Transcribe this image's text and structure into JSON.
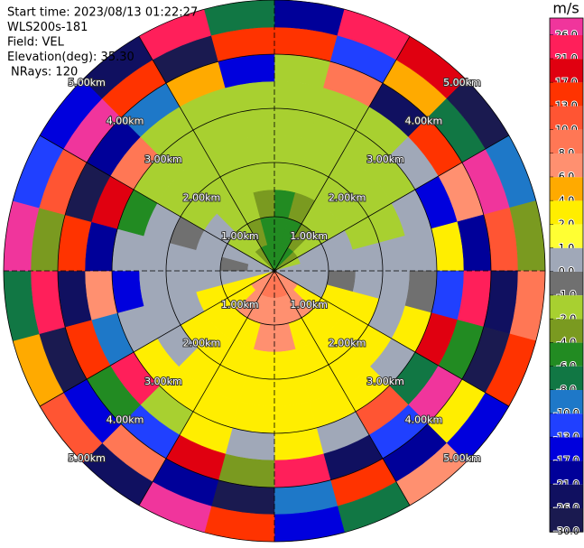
{
  "chart_data": {
    "type": "ppi",
    "header_lines": [
      "Start time: 2023/08/13 01:22:27",
      "WLS200s-181",
      "Field: VEL",
      "Elevation(deg): 35.30",
      "NRays: 120"
    ],
    "range_rings": [
      {
        "value": 1,
        "label": "1.00km"
      },
      {
        "value": 2,
        "label": "2.00km"
      },
      {
        "value": 3,
        "label": "3.00km"
      },
      {
        "value": 4,
        "label": "4.00km"
      },
      {
        "value": 5,
        "label": "5.00km"
      }
    ],
    "colorbar": {
      "label": "m/s",
      "ticks": [
        {
          "value": 26,
          "label": "26.0"
        },
        {
          "value": 21,
          "label": "21.0"
        },
        {
          "value": 17,
          "label": "17.0"
        },
        {
          "value": 13,
          "label": "13.0"
        },
        {
          "value": 10,
          "label": "10.0"
        },
        {
          "value": 8,
          "label": "8.0"
        },
        {
          "value": 6,
          "label": "6.0"
        },
        {
          "value": 4,
          "label": "4.0"
        },
        {
          "value": 2,
          "label": "2.0"
        },
        {
          "value": 1,
          "label": "1.0"
        },
        {
          "value": 0,
          "label": "0.0"
        },
        {
          "value": -1,
          "label": "-1.0"
        },
        {
          "value": -2,
          "label": "-2.0"
        },
        {
          "value": -4,
          "label": "-4.0"
        },
        {
          "value": -6,
          "label": "-6.0"
        },
        {
          "value": -8,
          "label": "-8.0"
        },
        {
          "value": -10,
          "label": "-10.0"
        },
        {
          "value": -13,
          "label": "-13.0"
        },
        {
          "value": -17,
          "label": "-17.0"
        },
        {
          "value": -21,
          "label": "-21.0"
        },
        {
          "value": -26,
          "label": "-26.0"
        },
        {
          "value": -30,
          "label": "-30.0"
        }
      ],
      "colors": [
        "#f0359c",
        "#ff1f5a",
        "#e00010",
        "#ff3300",
        "#ff5533",
        "#ff7755",
        "#ff9070",
        "#ffaa00",
        "#ffee00",
        "#ffff33",
        "#a0a8b8",
        "#707070",
        "#a8d030",
        "#7a9a20",
        "#228b22",
        "#117744",
        "#1e78c8",
        "#2040ff",
        "#0000dd",
        "#000099",
        "#101060",
        "#1a1a50"
      ]
    },
    "field": {
      "azimuths": [
        0,
        15,
        30,
        45,
        60,
        75,
        90,
        105,
        120,
        135,
        150,
        165,
        180,
        195,
        210,
        225,
        240,
        255,
        270,
        285,
        300,
        315,
        330,
        345
      ],
      "gate_edges_km": [
        0,
        0.5,
        1,
        1.5,
        2,
        2.5,
        3,
        3.5,
        4,
        4.5,
        5
      ],
      "values": [
        [
          -6,
          -6,
          -5,
          -2,
          -1.5,
          -1.5,
          -1.5,
          -2,
          15,
          -21
        ],
        [
          -6,
          -5,
          -4,
          -2,
          -1.5,
          -1.5,
          -1.5,
          8,
          -13,
          21
        ],
        [
          -5,
          -4,
          -2,
          -1.5,
          -1.5,
          -1.5,
          -1.5,
          -26,
          4,
          17
        ],
        [
          -4,
          -2,
          -1.5,
          -1.5,
          -1.5,
          -1.5,
          0.5,
          13,
          -8,
          -30
        ],
        [
          -1.5,
          0.5,
          0.5,
          -1.5,
          -1.5,
          0.5,
          -17,
          6,
          26,
          -10
        ],
        [
          0.5,
          0.5,
          0.5,
          0.5,
          0.5,
          0.5,
          3,
          -21,
          10,
          -4
        ],
        [
          0.5,
          0.5,
          -0.5,
          0.5,
          0.5,
          -0.5,
          -13,
          21,
          -26,
          8
        ],
        [
          0.5,
          0.5,
          3,
          3,
          0.5,
          3,
          17,
          -6,
          -30,
          13
        ],
        [
          7,
          3,
          3,
          3,
          3,
          0.5,
          -8,
          26,
          2,
          -17
        ],
        [
          7,
          7,
          3,
          3,
          3,
          3,
          10,
          -13,
          -21,
          6
        ],
        [
          8,
          7,
          3,
          3,
          3,
          3,
          0.5,
          -26,
          15,
          -8
        ],
        [
          8,
          7,
          7,
          3,
          3,
          3,
          3,
          21,
          -10,
          -17
        ],
        [
          8,
          7,
          7,
          3,
          3,
          3,
          0.5,
          -4,
          -30,
          13
        ],
        [
          8,
          7,
          3,
          3,
          3,
          3,
          3,
          17,
          -21,
          26
        ],
        [
          7,
          7,
          3,
          3,
          3,
          3,
          -1.5,
          -13,
          8,
          -26
        ],
        [
          7,
          3,
          3,
          3,
          0.5,
          3,
          21,
          -6,
          -17,
          10
        ],
        [
          3,
          3,
          3,
          0.5,
          0.5,
          0.5,
          -10,
          15,
          -30,
          4
        ],
        [
          0.5,
          0.5,
          0.5,
          0.5,
          0.5,
          -17,
          6,
          -26,
          21,
          -8
        ],
        [
          0.5,
          -0.5,
          0.5,
          0.5,
          0.5,
          0.5,
          -21,
          13,
          -4,
          26
        ],
        [
          0.5,
          0.5,
          0.5,
          -0.5,
          0.5,
          -6,
          17,
          -30,
          10,
          -13
        ],
        [
          -1.5,
          -1.5,
          0.5,
          -1.5,
          -1.5,
          -1.5,
          8,
          -21,
          26,
          -17
        ],
        [
          -4,
          -2,
          -1.5,
          -1.5,
          -1.5,
          -1.5,
          -1.5,
          -10,
          15,
          -26
        ],
        [
          -5,
          -4,
          -2,
          -1.5,
          -1.5,
          -1.5,
          -1.5,
          4,
          -30,
          21
        ],
        [
          -6,
          -5,
          -4,
          -1.5,
          -1.5,
          -1.5,
          -1.5,
          -17,
          13,
          -8
        ]
      ]
    }
  }
}
